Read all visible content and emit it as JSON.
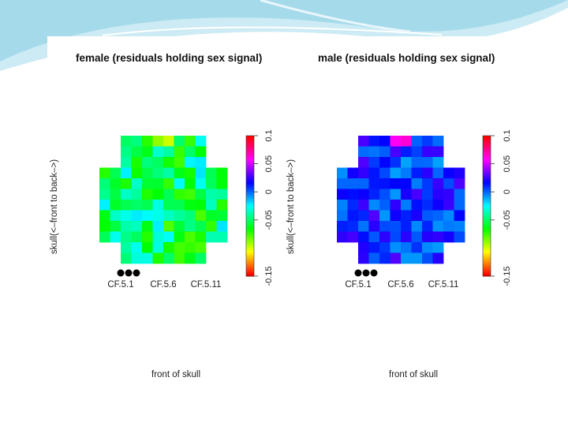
{
  "slide": {
    "background": "#ffffff",
    "accent_colors": [
      "#5bb7d8",
      "#a9dced",
      "#e6f4f9"
    ]
  },
  "chart_data": [
    {
      "type": "heatmap",
      "title": "female (residuals holding sex signal)",
      "xlabel": "front of skull",
      "ylabel": "skull(<–front to back–>)",
      "x_tick_labels": [
        "CF.5.1",
        "CF.5.6",
        "CF.5.11"
      ],
      "colorbar": {
        "range": [
          -0.15,
          0.1
        ],
        "tick_labels": [
          "-0.15",
          "-0.05",
          "0",
          "0.05",
          "0.1"
        ],
        "ticks": [
          -0.15,
          -0.05,
          0,
          0.05,
          0.1
        ],
        "colors": [
          "#ff0000",
          "#ffff00",
          "#00ff00",
          "#00ffff",
          "#0000ff",
          "#ff00ff",
          "#ff0000"
        ]
      },
      "grid": {
        "rows": 12,
        "cols": 12,
        "cross_shape": true,
        "min": -0.08,
        "max": -0.02,
        "hot_top": [
          0,
          5,
          -0.09
        ],
        "hot_top_2": [
          0,
          6,
          -0.1
        ]
      },
      "electrode_dots": 3
    },
    {
      "type": "heatmap",
      "title": "male (residuals holding sex signal)",
      "xlabel": "front of skull",
      "ylabel": "skull(<–front to back–>)",
      "x_tick_labels": [
        "CF.5.1",
        "CF.5.6",
        "CF.5.11"
      ],
      "colorbar": {
        "range": [
          -0.15,
          0.1
        ],
        "tick_labels": [
          "-0.15",
          "-0.05",
          "0",
          "0.05",
          "0.1"
        ],
        "ticks": [
          -0.15,
          -0.05,
          0,
          0.05,
          0.1
        ],
        "colors": [
          "#ff0000",
          "#ffff00",
          "#00ff00",
          "#00ffff",
          "#0000ff",
          "#ff00ff",
          "#ff0000"
        ]
      },
      "grid": {
        "rows": 12,
        "cols": 12,
        "cross_shape": true,
        "min": -0.01,
        "max": 0.03,
        "hot_top": [
          0,
          5,
          0.06
        ],
        "hot_top_2": [
          0,
          6,
          0.065
        ]
      },
      "electrode_dots": 3
    }
  ]
}
